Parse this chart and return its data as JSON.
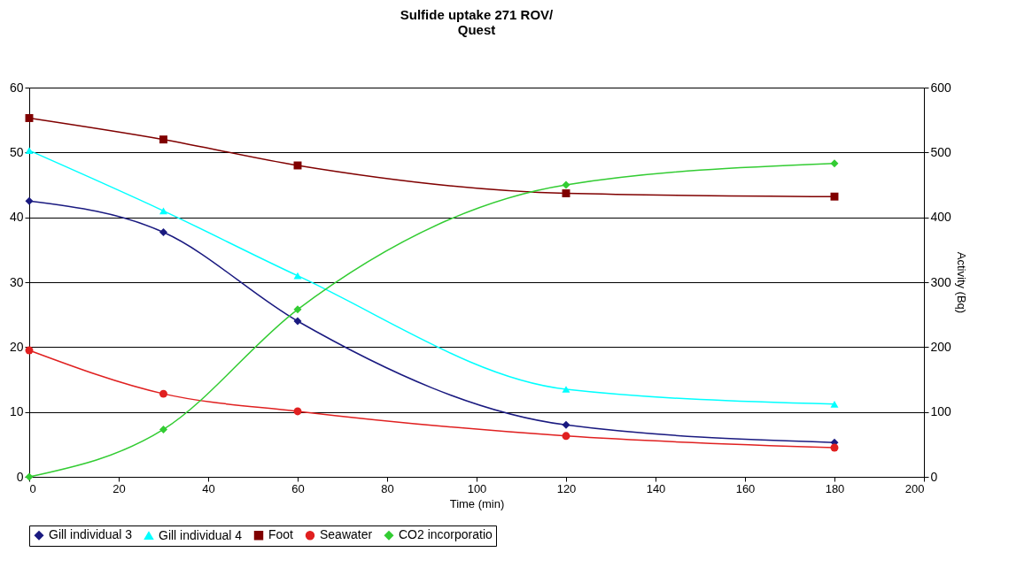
{
  "chart_data": {
    "type": "line",
    "title": "Sulfide uptake 271 ROV/\nQuest",
    "xlabel": "Time (min)",
    "y2label": "Activity (Bq)",
    "x": [
      0,
      30,
      60,
      120,
      180
    ],
    "series": [
      {
        "name": "Gill individual 3",
        "color": "#1a1a80",
        "marker": "diamond",
        "values": [
          42.5,
          37.7,
          24,
          8,
          5.3
        ]
      },
      {
        "name": "Gill individual 4",
        "color": "#00ffff",
        "marker": "triangle",
        "values": [
          50.3,
          41,
          31,
          13.5,
          11.2
        ]
      },
      {
        "name": "Foot",
        "color": "#800000",
        "marker": "square",
        "values": [
          55.3,
          52,
          48,
          43.7,
          43.2
        ]
      },
      {
        "name": "Seawater",
        "color": "#e02020",
        "marker": "circle",
        "values": [
          19.5,
          12.8,
          10.1,
          6.3,
          4.5
        ]
      },
      {
        "name": "CO2 incorporatio",
        "color": "#33cc33",
        "marker": "diamond",
        "axis": "y2",
        "values": [
          0,
          73,
          258,
          450,
          483
        ]
      }
    ],
    "xlim": [
      0,
      200
    ],
    "xticks": [
      0,
      20,
      40,
      60,
      80,
      100,
      120,
      140,
      160,
      180,
      200
    ],
    "ylim": [
      0,
      60
    ],
    "yticks": [
      0,
      10,
      20,
      30,
      40,
      50,
      60
    ],
    "y2lim": [
      0,
      600
    ],
    "y2ticks": [
      0,
      100,
      200,
      300,
      400,
      500,
      600
    ],
    "grid": "y",
    "legend": "bottom",
    "line_style": "solid"
  }
}
